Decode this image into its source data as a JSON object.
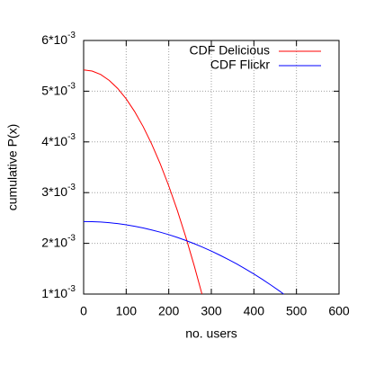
{
  "chart_data": {
    "type": "line",
    "xlabel": "no. users",
    "ylabel": "cumulative P(x)",
    "x": [
      0,
      20,
      40,
      60,
      80,
      100,
      120,
      140,
      160,
      180,
      200,
      220,
      240,
      260,
      278,
      300,
      320,
      340,
      360,
      380,
      400,
      420,
      440,
      460,
      470
    ],
    "series": [
      {
        "name": "CDF Delicious",
        "color": "#ff0000",
        "values": [
          0.00542,
          0.005397,
          0.005329,
          0.005214,
          0.005054,
          0.004848,
          0.004596,
          0.004299,
          0.003956,
          0.003567,
          0.003132,
          0.002652,
          0.002125,
          0.001553,
          0.001,
          null,
          null,
          null,
          null,
          null,
          null,
          null,
          null,
          null,
          null
        ]
      },
      {
        "name": "CDF Flickr",
        "color": "#0000ff",
        "values": [
          0.00243,
          0.002427,
          0.00242,
          0.002407,
          0.002389,
          0.002365,
          0.002337,
          0.002303,
          0.002264,
          0.00222,
          0.002171,
          0.002117,
          0.002057,
          0.001993,
          0.00193,
          0.001848,
          0.001767,
          0.001682,
          0.001592,
          0.001496,
          0.001395,
          0.001289,
          0.001177,
          0.001061,
          0.001
        ]
      }
    ],
    "xlim": [
      0,
      600
    ],
    "xticks": [
      0,
      100,
      200,
      300,
      400,
      500,
      600
    ],
    "ylim": [
      0.001,
      0.006
    ],
    "yticks": [
      {
        "value": 0.001,
        "label": "1*10^-3"
      },
      {
        "value": 0.002,
        "label": "2*10^-3"
      },
      {
        "value": 0.003,
        "label": "3*10^-3"
      },
      {
        "value": 0.004,
        "label": "4*10^-3"
      },
      {
        "value": 0.005,
        "label": "5*10^-3"
      },
      {
        "value": 0.006,
        "label": "6*10^-3"
      }
    ],
    "grid": true,
    "legend": "top-right"
  }
}
